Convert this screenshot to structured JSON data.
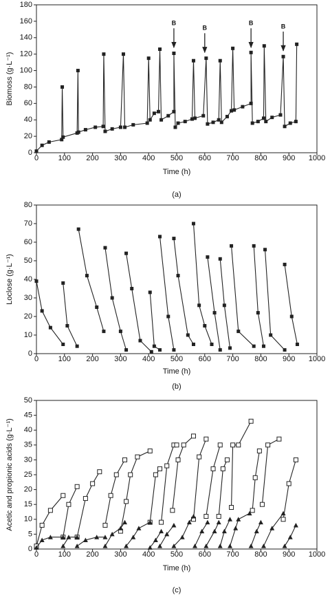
{
  "chart_data": [
    {
      "type": "line",
      "caption": "(a)",
      "y_label": "Biomoss (g·L⁻¹)",
      "x_label": "Time (h)",
      "xlim": [
        0,
        1000
      ],
      "xticks": [
        0,
        100,
        200,
        300,
        400,
        500,
        600,
        700,
        800,
        900,
        1000
      ],
      "ylim": [
        0,
        180
      ],
      "yticks": [
        0,
        20,
        40,
        60,
        80,
        100,
        120,
        140,
        160,
        180
      ],
      "series": [
        {
          "color": "#222222",
          "marker": "square",
          "x": [
            0,
            20,
            45,
            90,
            92,
            95,
            145,
            148,
            150,
            175,
            210,
            238,
            240,
            245,
            270,
            300,
            310,
            315,
            345,
            395,
            400,
            405,
            420,
            435,
            440,
            445,
            470,
            490,
            490,
            495,
            505,
            530,
            555,
            560,
            565,
            595,
            605,
            610,
            630,
            650,
            655,
            660,
            680,
            695,
            700,
            705,
            735,
            765,
            765,
            770,
            790,
            810,
            812,
            818,
            840,
            870,
            880,
            885,
            905,
            925,
            928
          ],
          "values": [
            2,
            9,
            13,
            16,
            80,
            19,
            24,
            100,
            25,
            28,
            31,
            32,
            120,
            26,
            29,
            31,
            120,
            31,
            34,
            36,
            115,
            40,
            48,
            50,
            126,
            40,
            45,
            50,
            121,
            31,
            36,
            38,
            41,
            112,
            42,
            45,
            115,
            35,
            37,
            40,
            112,
            37,
            44,
            51,
            127,
            52,
            56,
            60,
            122,
            36,
            38,
            42,
            130,
            38,
            43,
            46,
            117,
            32,
            36,
            38,
            132
          ]
        }
      ],
      "annotations": [
        {
          "text": "B",
          "x": 490,
          "y": 128
        },
        {
          "text": "B",
          "x": 600,
          "y": 122
        },
        {
          "text": "B",
          "x": 765,
          "y": 128
        },
        {
          "text": "B",
          "x": 880,
          "y": 124
        }
      ]
    },
    {
      "type": "line",
      "caption": "(b)",
      "y_label": "Loclose (g·L⁻¹)",
      "x_label": "Time (h)",
      "xlim": [
        0,
        1000
      ],
      "xticks": [
        0,
        100,
        200,
        300,
        400,
        500,
        600,
        700,
        800,
        900,
        1000
      ],
      "ylim": [
        0,
        80
      ],
      "yticks": [
        0,
        10,
        20,
        30,
        40,
        50,
        60,
        70,
        80
      ],
      "series": [
        {
          "color": "#222222",
          "marker": "square",
          "x": [
            0,
            20,
            50,
            95,
            null,
            95,
            110,
            145,
            null,
            150,
            180,
            215,
            240,
            null,
            245,
            270,
            300,
            320,
            null,
            320,
            340,
            370,
            410,
            null,
            405,
            420,
            440,
            null,
            440,
            470,
            490,
            null,
            490,
            505,
            540,
            560,
            null,
            560,
            580,
            600,
            625,
            null,
            610,
            635,
            655,
            null,
            655,
            670,
            690,
            null,
            695,
            720,
            775,
            null,
            775,
            790,
            810,
            null,
            815,
            835,
            885,
            null,
            885,
            910,
            930
          ],
          "values": [
            39,
            23,
            14,
            5,
            null,
            38,
            15,
            4,
            null,
            67,
            42,
            25,
            12,
            null,
            57,
            30,
            12,
            2,
            null,
            54,
            35,
            7,
            1,
            null,
            33,
            4,
            2,
            null,
            63,
            20,
            2,
            null,
            62,
            42,
            10,
            5,
            null,
            70,
            26,
            15,
            5,
            null,
            52,
            22,
            2,
            null,
            51,
            26,
            3,
            null,
            58,
            12,
            4,
            null,
            58,
            22,
            4,
            null,
            56,
            10,
            2,
            null,
            48,
            20,
            5
          ]
        }
      ]
    },
    {
      "type": "line",
      "caption": "(c)",
      "y_label": "Acetic and propionic acids (g·L⁻¹)",
      "x_label": "Time (h)",
      "xlim": [
        0,
        1000
      ],
      "xticks": [
        0,
        100,
        200,
        300,
        400,
        500,
        600,
        700,
        800,
        900,
        1000
      ],
      "ylim": [
        0,
        50
      ],
      "yticks": [
        0,
        5,
        10,
        15,
        20,
        25,
        30,
        35,
        40,
        45,
        50
      ],
      "series": [
        {
          "color": "#222222",
          "marker": "open-square",
          "x": [
            0,
            20,
            50,
            95,
            null,
            95,
            115,
            145,
            null,
            145,
            175,
            200,
            225,
            null,
            245,
            265,
            285,
            315,
            null,
            300,
            320,
            335,
            360,
            405,
            null,
            405,
            425,
            440,
            null,
            445,
            465,
            490,
            500,
            null,
            485,
            505,
            525,
            560,
            null,
            560,
            580,
            605,
            null,
            605,
            630,
            655,
            null,
            650,
            665,
            680,
            null,
            695,
            700,
            720,
            765,
            null,
            770,
            780,
            795,
            null,
            805,
            825,
            865,
            null,
            880,
            900,
            925
          ],
          "values": [
            1,
            8,
            13,
            18,
            null,
            4,
            15,
            21,
            null,
            4,
            17,
            22,
            26,
            null,
            8,
            18,
            25,
            30,
            null,
            6,
            16,
            25,
            31,
            33,
            null,
            9,
            25,
            27,
            null,
            9,
            28,
            35,
            35,
            null,
            13,
            30,
            35,
            38,
            null,
            10,
            31,
            37,
            null,
            11,
            27,
            35,
            null,
            11,
            27,
            30,
            null,
            14,
            35,
            35,
            43,
            null,
            13,
            24,
            33,
            null,
            15,
            35,
            37,
            null,
            10,
            22,
            30
          ]
        },
        {
          "color": "#222222",
          "marker": "triangle",
          "x": [
            0,
            20,
            50,
            95,
            null,
            95,
            115,
            145,
            null,
            145,
            175,
            215,
            245,
            null,
            245,
            270,
            300,
            315,
            null,
            320,
            345,
            365,
            405,
            null,
            405,
            425,
            445,
            null,
            440,
            465,
            490,
            null,
            490,
            520,
            545,
            560,
            null,
            565,
            590,
            610,
            null,
            605,
            635,
            650,
            null,
            655,
            670,
            690,
            null,
            690,
            710,
            720,
            760,
            null,
            765,
            785,
            800,
            null,
            810,
            840,
            880,
            null,
            885,
            905,
            925
          ],
          "values": [
            0.5,
            3,
            4,
            4,
            null,
            1,
            4,
            4,
            null,
            1,
            3,
            4,
            4,
            null,
            1,
            5,
            7,
            9,
            null,
            1,
            4,
            7,
            9,
            null,
            0.5,
            3,
            6,
            null,
            1,
            5,
            8,
            null,
            1,
            4,
            9,
            11,
            null,
            1,
            6,
            9,
            null,
            1,
            6,
            9,
            null,
            1,
            6,
            10,
            null,
            1,
            7,
            10,
            12,
            null,
            1,
            6,
            9,
            null,
            1,
            7,
            12,
            null,
            1,
            4,
            8
          ]
        }
      ]
    }
  ]
}
